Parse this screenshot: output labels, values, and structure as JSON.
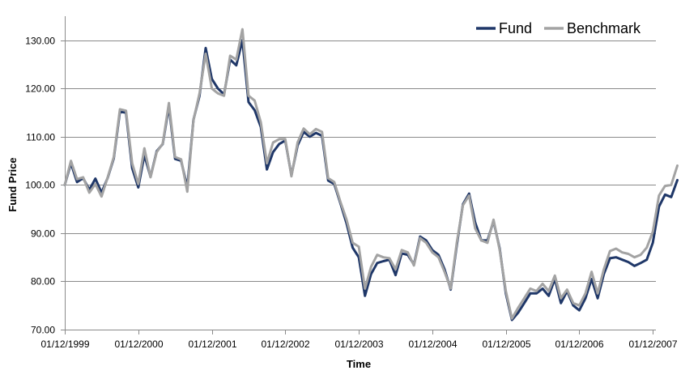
{
  "chart_data": {
    "type": "line",
    "title": "",
    "xlabel": "Time",
    "ylabel": "Fund Price",
    "ylim": [
      70,
      135
    ],
    "yticks": [
      70,
      80,
      90,
      100,
      110,
      120,
      130
    ],
    "ytick_labels": [
      "70.00",
      "80.00",
      "90.00",
      "100.00",
      "110.00",
      "120.00",
      "130.00"
    ],
    "xlim": [
      0,
      96.5
    ],
    "xticks": [
      0,
      12,
      24,
      36,
      48,
      60,
      72,
      84,
      96
    ],
    "xtick_labels": [
      "01/12/1999",
      "01/12/2000",
      "01/12/2001",
      "01/12/2002",
      "01/12/2003",
      "01/12/2004",
      "01/12/2005",
      "01/12/2006",
      "01/12/2007"
    ],
    "x_interval": "monthly",
    "grid": {
      "horizontal": true,
      "vertical": false
    },
    "legend": {
      "position": "top-right"
    },
    "series": [
      {
        "name": "Fund",
        "color": "#1f3768",
        "values": [
          100.0,
          104.5,
          100.6,
          101.4,
          99.0,
          101.3,
          98.4,
          101.5,
          105.5,
          115.2,
          115.0,
          103.5,
          99.5,
          106.2,
          101.7,
          107.0,
          108.5,
          116.3,
          105.4,
          105.0,
          99.5,
          113.5,
          118.5,
          128.4,
          122.0,
          120.0,
          118.8,
          126.0,
          124.8,
          130.0,
          117.2,
          115.5,
          112.0,
          103.2,
          106.8,
          108.5,
          109.2,
          102.0,
          108.2,
          111.0,
          110.0,
          110.8,
          110.2,
          100.9,
          100.2,
          96.2,
          92.0,
          87.0,
          85.0,
          77.0,
          81.5,
          83.8,
          84.2,
          84.5,
          81.3,
          85.8,
          85.5,
          83.5,
          89.3,
          88.5,
          86.5,
          85.5,
          82.5,
          78.3,
          87.5,
          96.0,
          98.2,
          92.2,
          88.5,
          88.5,
          92.5,
          86.8,
          77.5,
          72.0,
          73.5,
          75.5,
          77.5,
          77.5,
          78.5,
          77.0,
          80.5,
          75.5,
          78.0,
          75.0,
          74.0,
          76.5,
          80.5,
          76.5,
          81.5,
          84.8,
          85.0,
          84.5,
          84.0,
          83.2,
          83.8,
          84.5,
          88.0,
          95.5,
          98.0,
          97.5,
          101.0
        ]
      },
      {
        "name": "Benchmark",
        "color": "#a3a3a3",
        "values": [
          100.0,
          105.0,
          101.2,
          101.6,
          98.4,
          100.2,
          97.6,
          101.6,
          105.8,
          115.7,
          115.4,
          104.5,
          100.2,
          107.6,
          101.6,
          106.8,
          108.6,
          117.0,
          105.8,
          105.3,
          98.6,
          113.4,
          119.0,
          127.2,
          120.0,
          119.0,
          118.5,
          126.8,
          126.0,
          132.3,
          118.5,
          117.5,
          113.0,
          104.5,
          108.8,
          109.5,
          109.5,
          101.8,
          108.8,
          111.7,
          110.5,
          111.6,
          111.0,
          101.4,
          100.6,
          96.5,
          92.8,
          88.0,
          87.2,
          78.5,
          83.0,
          85.5,
          85.0,
          84.8,
          82.5,
          86.5,
          86.0,
          83.3,
          89.0,
          88.0,
          86.0,
          85.0,
          82.0,
          78.5,
          88.0,
          95.8,
          97.8,
          91.0,
          88.5,
          88.0,
          92.8,
          86.5,
          78.0,
          72.3,
          74.5,
          76.5,
          78.5,
          78.0,
          79.5,
          78.0,
          81.2,
          76.5,
          78.3,
          75.5,
          75.0,
          77.5,
          82.0,
          77.5,
          82.5,
          86.3,
          86.8,
          86.0,
          85.7,
          85.0,
          85.5,
          87.0,
          90.3,
          97.8,
          99.8,
          100.0,
          104.0
        ]
      }
    ]
  }
}
